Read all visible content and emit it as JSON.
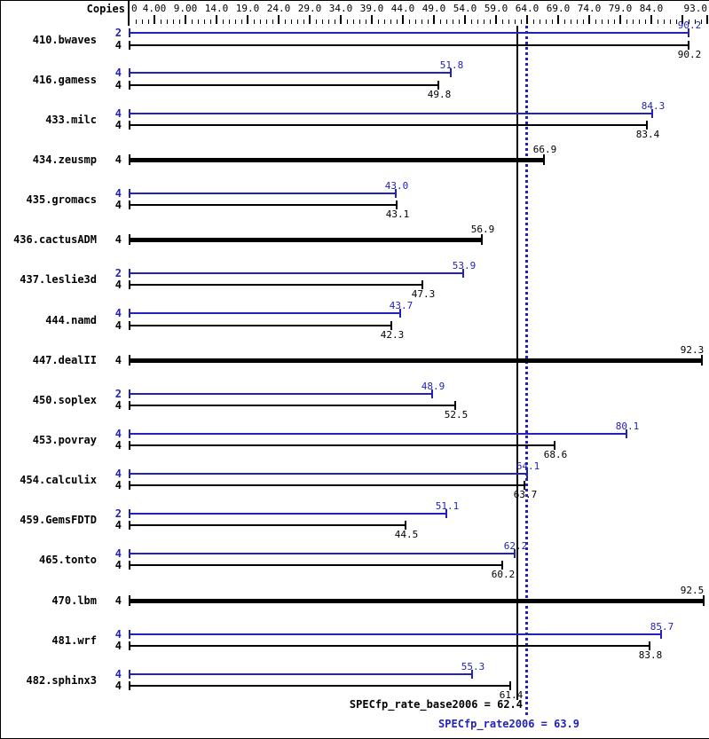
{
  "header": {
    "copies_label": "Copies"
  },
  "axis": {
    "labels": [
      {
        "v": 0,
        "t": "0"
      },
      {
        "v": 4,
        "t": "4.00"
      },
      {
        "v": 9,
        "t": "9.00"
      },
      {
        "v": 14,
        "t": "14.0"
      },
      {
        "v": 19,
        "t": "19.0"
      },
      {
        "v": 24,
        "t": "24.0"
      },
      {
        "v": 29,
        "t": "29.0"
      },
      {
        "v": 34,
        "t": "34.0"
      },
      {
        "v": 39,
        "t": "39.0"
      },
      {
        "v": 44,
        "t": "44.0"
      },
      {
        "v": 49,
        "t": "49.0"
      },
      {
        "v": 54,
        "t": "54.0"
      },
      {
        "v": 59,
        "t": "59.0"
      },
      {
        "v": 64,
        "t": "64.0"
      },
      {
        "v": 69,
        "t": "69.0"
      },
      {
        "v": 74,
        "t": "74.0"
      },
      {
        "v": 79,
        "t": "79.0"
      },
      {
        "v": 84,
        "t": "84.0"
      },
      {
        "v": 93,
        "t": "93.0"
      }
    ],
    "max": 93
  },
  "summary": {
    "base_label": "SPECfp_rate_base2006 = 62.4",
    "base_value": 62.4,
    "peak_label": "SPECfp_rate2006 = 63.9",
    "peak_value": 63.9
  },
  "colors": {
    "peak_blue": "#2222bb",
    "base_black": "#000000"
  },
  "chart_data": {
    "type": "bar",
    "orientation": "horizontal",
    "xlim": [
      0,
      93
    ],
    "x_major_tick_step": 5,
    "series": [
      "peak (blue bars)",
      "base (black bars)"
    ],
    "mean_lines": [
      {
        "name": "SPECfp_rate_base2006",
        "value": 62.4,
        "style": "solid black"
      },
      {
        "name": "SPECfp_rate2006",
        "value": 63.9,
        "style": "dotted blue"
      }
    ],
    "benchmarks": [
      {
        "name": "410.bwaves",
        "rows": [
          {
            "kind": "peak",
            "copies": "2",
            "value": 90.2,
            "label": "90.2"
          },
          {
            "kind": "base",
            "copies": "4",
            "value": 90.2,
            "label": "90.2"
          }
        ]
      },
      {
        "name": "416.gamess",
        "rows": [
          {
            "kind": "peak",
            "copies": "4",
            "value": 51.8,
            "label": "51.8"
          },
          {
            "kind": "base",
            "copies": "4",
            "value": 49.8,
            "label": "49.8"
          }
        ]
      },
      {
        "name": "433.milc",
        "rows": [
          {
            "kind": "peak",
            "copies": "4",
            "value": 84.3,
            "label": "84.3"
          },
          {
            "kind": "base",
            "copies": "4",
            "value": 83.4,
            "label": "83.4"
          }
        ]
      },
      {
        "name": "434.zeusmp",
        "rows": [
          {
            "kind": "base-only",
            "copies": "4",
            "value": 66.9,
            "label": "66.9"
          }
        ]
      },
      {
        "name": "435.gromacs",
        "rows": [
          {
            "kind": "peak",
            "copies": "4",
            "value": 43.0,
            "label": "43.0"
          },
          {
            "kind": "base",
            "copies": "4",
            "value": 43.1,
            "label": "43.1"
          }
        ]
      },
      {
        "name": "436.cactusADM",
        "rows": [
          {
            "kind": "base-only",
            "copies": "4",
            "value": 56.9,
            "label": "56.9"
          }
        ]
      },
      {
        "name": "437.leslie3d",
        "rows": [
          {
            "kind": "peak",
            "copies": "2",
            "value": 53.9,
            "label": "53.9"
          },
          {
            "kind": "base",
            "copies": "4",
            "value": 47.3,
            "label": "47.3"
          }
        ]
      },
      {
        "name": "444.namd",
        "rows": [
          {
            "kind": "peak",
            "copies": "4",
            "value": 43.7,
            "label": "43.7"
          },
          {
            "kind": "base",
            "copies": "4",
            "value": 42.3,
            "label": "42.3"
          }
        ]
      },
      {
        "name": "447.dealII",
        "rows": [
          {
            "kind": "base-only",
            "copies": "4",
            "value": 92.3,
            "label": "92.3"
          }
        ]
      },
      {
        "name": "450.soplex",
        "rows": [
          {
            "kind": "peak",
            "copies": "2",
            "value": 48.9,
            "label": "48.9"
          },
          {
            "kind": "base",
            "copies": "4",
            "value": 52.5,
            "label": "52.5"
          }
        ]
      },
      {
        "name": "453.povray",
        "rows": [
          {
            "kind": "peak",
            "copies": "4",
            "value": 80.1,
            "label": "80.1"
          },
          {
            "kind": "base",
            "copies": "4",
            "value": 68.6,
            "label": "68.6"
          }
        ]
      },
      {
        "name": "454.calculix",
        "rows": [
          {
            "kind": "peak",
            "copies": "4",
            "value": 64.1,
            "label": "64.1"
          },
          {
            "kind": "base",
            "copies": "4",
            "value": 63.7,
            "label": "63.7"
          }
        ]
      },
      {
        "name": "459.GemsFDTD",
        "rows": [
          {
            "kind": "peak",
            "copies": "2",
            "value": 51.1,
            "label": "51.1"
          },
          {
            "kind": "base",
            "copies": "4",
            "value": 44.5,
            "label": "44.5"
          }
        ]
      },
      {
        "name": "465.tonto",
        "rows": [
          {
            "kind": "peak",
            "copies": "4",
            "value": 62.2,
            "label": "62.2"
          },
          {
            "kind": "base",
            "copies": "4",
            "value": 60.2,
            "label": "60.2"
          }
        ]
      },
      {
        "name": "470.lbm",
        "rows": [
          {
            "kind": "base-only",
            "copies": "4",
            "value": 92.5,
            "label": "92.5"
          }
        ]
      },
      {
        "name": "481.wrf",
        "rows": [
          {
            "kind": "peak",
            "copies": "4",
            "value": 85.7,
            "label": "85.7"
          },
          {
            "kind": "base",
            "copies": "4",
            "value": 83.8,
            "label": "83.8"
          }
        ]
      },
      {
        "name": "482.sphinx3",
        "rows": [
          {
            "kind": "peak",
            "copies": "4",
            "value": 55.3,
            "label": "55.3"
          },
          {
            "kind": "base",
            "copies": "4",
            "value": 61.4,
            "label": "61.4"
          }
        ]
      }
    ]
  }
}
